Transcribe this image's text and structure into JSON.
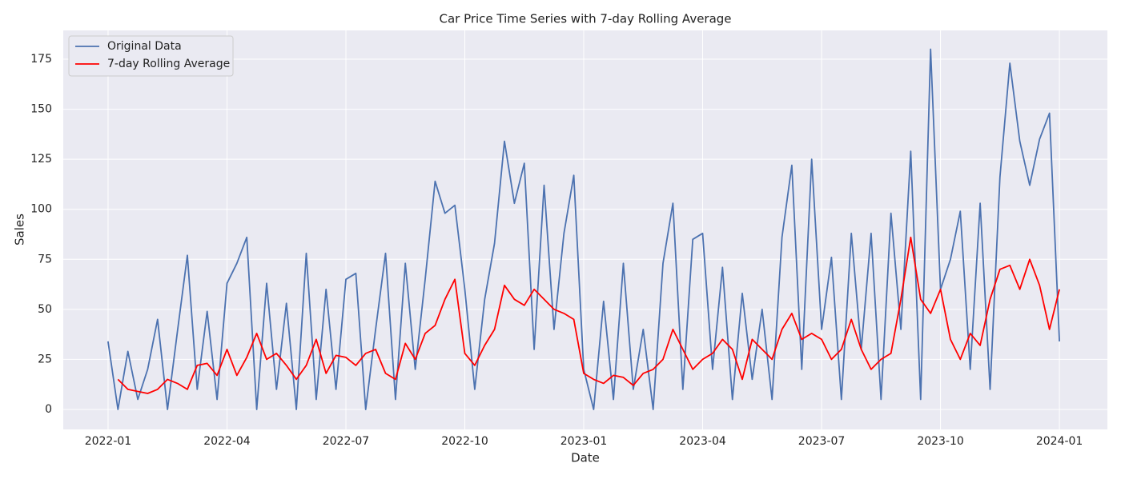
{
  "chart_data": {
    "type": "line",
    "title": "Car Price Time Series with 7-day Rolling Average",
    "x_label": "Date",
    "y_label": "Sales",
    "x": [
      0,
      0.25,
      0.5,
      0.75,
      1,
      1.25,
      1.5,
      1.75,
      2,
      2.25,
      2.5,
      2.75,
      3,
      3.25,
      3.5,
      3.75,
      4,
      4.25,
      4.5,
      4.75,
      5,
      5.25,
      5.5,
      5.75,
      6,
      6.25,
      6.5,
      6.75,
      7,
      7.25,
      7.5,
      7.75,
      8,
      8.25,
      8.5,
      8.75,
      9,
      9.25,
      9.5,
      9.75,
      10,
      10.25,
      10.5,
      10.75,
      11,
      11.25,
      11.5,
      11.75,
      12,
      12.25,
      12.5,
      12.75,
      13,
      13.25,
      13.5,
      13.75,
      14,
      14.25,
      14.5,
      14.75,
      15,
      15.25,
      15.5,
      15.75,
      16,
      16.25,
      16.5,
      16.75,
      17,
      17.25,
      17.5,
      17.75,
      18,
      18.25,
      18.5,
      18.75,
      19,
      19.25,
      19.5,
      19.75,
      20,
      20.25,
      20.5,
      20.75,
      21,
      21.25,
      21.5,
      21.75,
      22,
      22.25,
      22.5,
      22.75,
      23,
      23.25,
      23.5,
      23.75,
      24
    ],
    "series": [
      {
        "name": "Original Data",
        "color": "#4c72b0",
        "values": [
          34,
          0,
          29,
          5,
          20,
          45,
          0,
          39,
          77,
          10,
          49,
          5,
          63,
          73,
          86,
          0,
          63,
          10,
          53,
          0,
          78,
          5,
          60,
          10,
          65,
          68,
          0,
          40,
          78,
          5,
          73,
          20,
          65,
          114,
          98,
          102,
          60,
          10,
          55,
          83,
          134,
          103,
          123,
          30,
          112,
          40,
          88,
          117,
          20,
          0,
          54,
          5,
          73,
          10,
          40,
          0,
          73,
          103,
          10,
          85,
          88,
          20,
          71,
          5,
          58,
          15,
          50,
          5,
          86,
          122,
          20,
          125,
          40,
          76,
          5,
          88,
          30,
          88,
          5,
          98,
          40,
          129,
          5,
          180,
          60,
          75,
          99,
          20,
          103,
          10,
          116,
          173,
          134,
          112,
          135,
          148,
          34
        ]
      },
      {
        "name": "7-day Rolling Average",
        "color": "#ff0000",
        "values": [
          null,
          15,
          10,
          9,
          8,
          10,
          15,
          13,
          10,
          22,
          23,
          17,
          30,
          17,
          26,
          38,
          25,
          28,
          22,
          15,
          22,
          35,
          18,
          27,
          26,
          22,
          28,
          30,
          18,
          15,
          33,
          25,
          38,
          42,
          55,
          65,
          28,
          22,
          32,
          40,
          62,
          55,
          52,
          60,
          55,
          50,
          48,
          45,
          18,
          15,
          13,
          17,
          16,
          12,
          18,
          20,
          25,
          40,
          30,
          20,
          25,
          28,
          35,
          30,
          15,
          35,
          30,
          25,
          40,
          48,
          35,
          38,
          35,
          25,
          30,
          45,
          30,
          20,
          25,
          28,
          55,
          86,
          55,
          48,
          60,
          35,
          25,
          38,
          32,
          55,
          70,
          72,
          60,
          75,
          62,
          40,
          60
        ]
      }
    ],
    "xlim": [
      -1.13,
      25.21
    ],
    "xticks": [
      {
        "value": 0,
        "label": "2022-01"
      },
      {
        "value": 3,
        "label": "2022-04"
      },
      {
        "value": 6,
        "label": "2022-07"
      },
      {
        "value": 9,
        "label": "2022-10"
      },
      {
        "value": 12,
        "label": "2023-01"
      },
      {
        "value": 15,
        "label": "2023-04"
      },
      {
        "value": 18,
        "label": "2023-07"
      },
      {
        "value": 21,
        "label": "2023-10"
      },
      {
        "value": 24,
        "label": "2024-01"
      }
    ],
    "ylim": [
      -10,
      189.4
    ],
    "yticks": [
      0,
      25,
      50,
      75,
      100,
      125,
      150,
      175
    ],
    "grid": true,
    "legend": "upper-left"
  }
}
